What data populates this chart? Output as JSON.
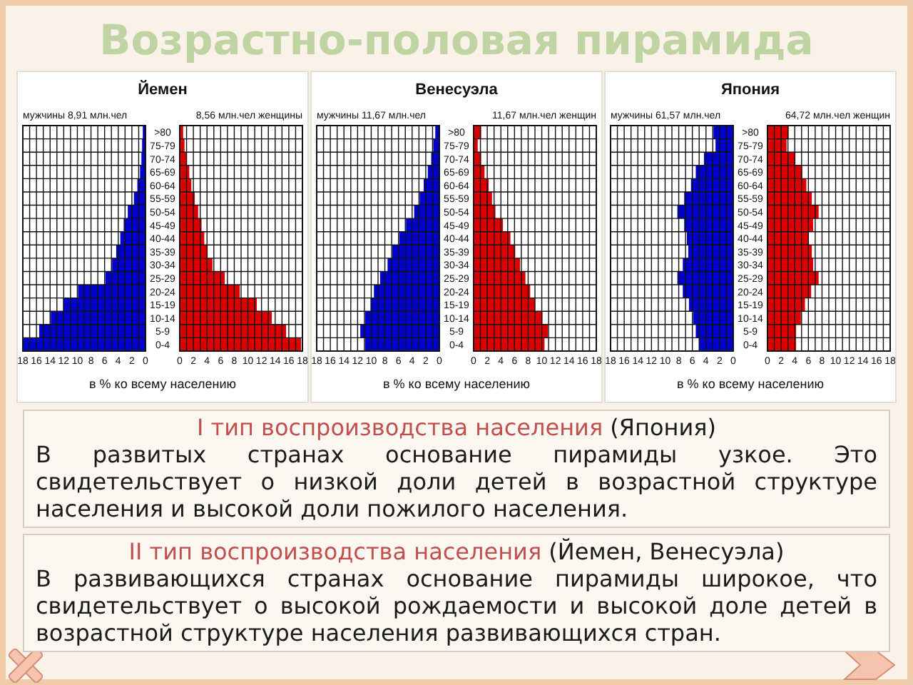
{
  "chart_data": [
    {
      "type": "other",
      "title": "Возрастно-половая пирамида"
    },
    {
      "type": "bar",
      "orientation": "horizontal",
      "title": "Йемен",
      "xlabel": "в % ко всему населению",
      "categories": [
        ">80",
        "75-79",
        "70-74",
        "65-69",
        "60-64",
        "55-59",
        "50-54",
        "45-49",
        "40-44",
        "35-39",
        "30-34",
        "25-29",
        "20-24",
        "15-19",
        "10-14",
        "5-9",
        "0-4"
      ],
      "series": [
        {
          "name": "мужчины 8,91 млн.чел",
          "color": "#0000cc",
          "values": [
            0.4,
            0.5,
            0.6,
            0.8,
            1.2,
            1.7,
            2.6,
            3.2,
            3.7,
            4.3,
            4.9,
            5.9,
            9.9,
            12.1,
            13.9,
            15.6,
            18
          ]
        }
      ],
      "xlim": [
        18,
        0
      ],
      "xticks": [
        18,
        {
          "value": 17,
          "label": null
        },
        16,
        {
          "value": 15,
          "label": null
        },
        14,
        {
          "value": 13,
          "label": null
        },
        12,
        {
          "value": 11,
          "label": null
        },
        10,
        {
          "value": 9,
          "label": null
        },
        8,
        {
          "value": 7,
          "label": null
        },
        6,
        {
          "value": 5,
          "label": null
        },
        4,
        {
          "value": 3,
          "label": null
        },
        2,
        {
          "value": 1,
          "label": null
        },
        0
      ],
      "grid": true
    },
    {
      "type": "bar",
      "orientation": "horizontal",
      "categories": [
        ">80",
        "75-79",
        "70-74",
        "65-69",
        "60-64",
        "55-59",
        "50-54",
        "45-49",
        "40-44",
        "35-39",
        "30-34",
        "25-29",
        "20-24",
        "15-19",
        "10-14",
        "5-9",
        "0-4"
      ],
      "series": [
        {
          "name": "8,56 млн.чел женщины",
          "color": "#dd0000",
          "values": [
            0.5,
            0.7,
            1,
            1.4,
            1.7,
            2.2,
            2.7,
            3.2,
            3.6,
            4.1,
            4.8,
            6.6,
            8.8,
            11.3,
            13.5,
            15.6,
            17.8
          ]
        }
      ],
      "xlim": [
        0,
        18
      ],
      "xticks": [
        0,
        {
          "value": 1,
          "label": null
        },
        2,
        {
          "value": 3,
          "label": null
        },
        4,
        {
          "value": 5,
          "label": null
        },
        6,
        {
          "value": 7,
          "label": null
        },
        8,
        {
          "value": 9,
          "label": null
        },
        10,
        {
          "value": 11,
          "label": null
        },
        12,
        {
          "value": 13,
          "label": null
        },
        14,
        {
          "value": 15,
          "label": null
        },
        16,
        {
          "value": 17,
          "label": null
        },
        18
      ],
      "grid": true,
      "tick_labels": "x"
    },
    {
      "type": "bar",
      "orientation": "horizontal",
      "title": "Венесуэла",
      "xlabel": "в % ко всему населению",
      "categories": [
        ">80",
        "75-79",
        "70-74",
        "65-69",
        "60-64",
        "55-59",
        "50-54",
        "45-49",
        "40-44",
        "35-39",
        "30-34",
        "25-29",
        "20-24",
        "15-19",
        "10-14",
        "5-9",
        "0-4"
      ],
      "series": [
        {
          "name": "мужчины 11,67 млн.чел",
          "color": "#0000cc",
          "values": [
            0.6,
            0.9,
            1.2,
            1.7,
            2.3,
            2.9,
            3.7,
            4.9,
            5.9,
            6.9,
            7.6,
            8.7,
            9.6,
            10.1,
            10.9,
            11.6,
            10.9
          ]
        }
      ],
      "xlim": [
        18,
        0
      ],
      "xticks": [
        18,
        {
          "value": 17,
          "label": null
        },
        16,
        {
          "value": 15,
          "label": null
        },
        14,
        {
          "value": 13,
          "label": null
        },
        12,
        {
          "value": 11,
          "label": null
        },
        10,
        {
          "value": 9,
          "label": null
        },
        8,
        {
          "value": 7,
          "label": null
        },
        6,
        {
          "value": 5,
          "label": null
        },
        4,
        {
          "value": 3,
          "label": null
        },
        2,
        {
          "value": 1,
          "label": null
        },
        0
      ],
      "grid": true
    },
    {
      "type": "bar",
      "orientation": "horizontal",
      "categories": [
        ">80",
        "75-79",
        "70-74",
        "65-69",
        "60-64",
        "55-59",
        "50-54",
        "45-49",
        "40-44",
        "35-39",
        "30-34",
        "25-29",
        "20-24",
        "15-19",
        "10-14",
        "5-9",
        "0-4"
      ],
      "series": [
        {
          "name": "11,67 млн.чел женщин",
          "color": "#dd0000",
          "values": [
            1.1,
            0.6,
            1.1,
            1.6,
            2.2,
            2.7,
            3.2,
            4.3,
            5.4,
            6.1,
            6.8,
            7.6,
            8.3,
            9,
            10.1,
            10.9,
            10.4
          ]
        }
      ],
      "xlim": [
        0,
        18
      ],
      "xticks": [
        0,
        {
          "value": 1,
          "label": null
        },
        2,
        {
          "value": 3,
          "label": null
        },
        4,
        {
          "value": 5,
          "label": null
        },
        6,
        {
          "value": 7,
          "label": null
        },
        8,
        {
          "value": 9,
          "label": null
        },
        10,
        {
          "value": 11,
          "label": null
        },
        12,
        {
          "value": 13,
          "label": null
        },
        14,
        {
          "value": 15,
          "label": null
        },
        16,
        {
          "value": 17,
          "label": null
        },
        18
      ],
      "grid": true,
      "tick_labels": "x"
    },
    {
      "type": "bar",
      "orientation": "horizontal",
      "title": "Япония",
      "xlabel": "в % ко всему населению",
      "categories": [
        ">80",
        "75-79",
        "70-74",
        "65-69",
        "60-64",
        "55-59",
        "50-54",
        "45-49",
        "40-44",
        "35-39",
        "30-34",
        "25-29",
        "20-24",
        "15-19",
        "10-14",
        "5-9",
        "0-4"
      ],
      "series": [
        {
          "name": "мужчины 61,57 млн.чел",
          "color": "#0000cc",
          "values": [
            2.9,
            2.6,
            4.3,
            5.5,
            6.2,
            7.2,
            8.2,
            7.2,
            6.8,
            6.6,
            7.4,
            8.2,
            7.4,
            6.5,
            5.9,
            5.5,
            5
          ]
        }
      ],
      "xlim": [
        18,
        0
      ],
      "xticks": [
        18,
        {
          "value": 17,
          "label": null
        },
        16,
        {
          "value": 15,
          "label": null
        },
        14,
        {
          "value": 13,
          "label": null
        },
        12,
        {
          "value": 11,
          "label": null
        },
        10,
        {
          "value": 9,
          "label": null
        },
        8,
        {
          "value": 7,
          "label": null
        },
        6,
        {
          "value": 5,
          "label": null
        },
        4,
        {
          "value": 3,
          "label": null
        },
        2,
        {
          "value": 1,
          "label": null
        },
        0
      ],
      "grid": true
    },
    {
      "type": "bar",
      "orientation": "horizontal",
      "categories": [
        ">80",
        "75-79",
        "70-74",
        "65-69",
        "60-64",
        "55-59",
        "50-54",
        "45-49",
        "40-44",
        "35-39",
        "30-34",
        "25-29",
        "20-24",
        "15-19",
        "10-14",
        "5-9",
        "0-4"
      ],
      "series": [
        {
          "name": "64,72 млн.чел женщин",
          "color": "#dd0000",
          "values": [
            3.1,
            2.8,
            4.1,
            5.1,
            5.7,
            6.5,
            7.5,
            6.7,
            6,
            6.5,
            6.7,
            7.5,
            6.4,
            5.5,
            4.9,
            4.2,
            4.2
          ]
        }
      ],
      "xlim": [
        0,
        18
      ],
      "xticks": [
        0,
        {
          "value": 1,
          "label": null
        },
        2,
        {
          "value": 3,
          "label": null
        },
        4,
        {
          "value": 5,
          "label": null
        },
        6,
        {
          "value": 7,
          "label": null
        },
        8,
        {
          "value": 9,
          "label": null
        },
        10,
        {
          "value": 11,
          "label": null
        },
        12,
        {
          "value": 13,
          "label": null
        },
        14,
        {
          "value": 15,
          "label": null
        },
        16,
        {
          "value": 17,
          "label": null
        },
        18
      ],
      "grid": true,
      "tick_labels": "x"
    },
    {
      "type": "other",
      "annotations": [
        "I тип воспроизводства населения",
        "(Япония)",
        "В развитых странах основание пирамиды узкое. Это свидетельствует о низкой доли детей в возрастной структуре населения и высокой доли пожилого населения.",
        "II тип воспроизводства населения",
        "(Йемен, Венесуэла)",
        "В развивающихся странах основание пирамиды широкое, что свидетельствует о высокой рождаемости и высокой доле детей в возрастной структуре населения развивающихся стран."
      ]
    }
  ]
}
